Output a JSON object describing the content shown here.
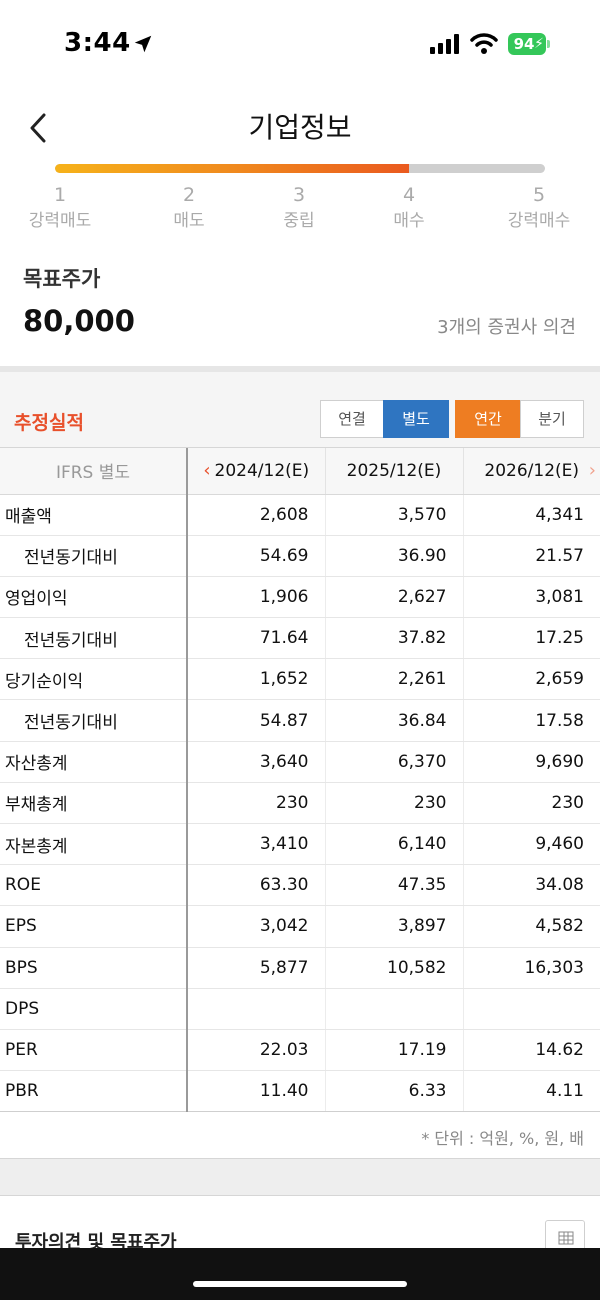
{
  "status": {
    "time": "3:44",
    "battery": "94"
  },
  "header": {
    "title": "기업정보"
  },
  "rating": {
    "level": 4,
    "steps": [
      {
        "num": "1",
        "label": "강력매도"
      },
      {
        "num": "2",
        "label": "매도"
      },
      {
        "num": "3",
        "label": "중립"
      },
      {
        "num": "4",
        "label": "매수"
      },
      {
        "num": "5",
        "label": "강력매수"
      }
    ]
  },
  "target": {
    "label": "목표주가",
    "value": "80,000",
    "opinion": "3개의 증권사 의견"
  },
  "estimate": {
    "title": "추정실적",
    "toggles": {
      "consolidated": "연결",
      "separate": "별도",
      "annual": "연간",
      "quarterly": "분기"
    },
    "columns": [
      "IFRS 별도",
      "2024/12(E)",
      "2025/12(E)",
      "2026/12(E)"
    ],
    "rows": [
      {
        "label": "매출액",
        "sub": false,
        "values": [
          "2,608",
          "3,570",
          "4,341"
        ]
      },
      {
        "label": "전년동기대비",
        "sub": true,
        "values": [
          "54.69",
          "36.90",
          "21.57"
        ]
      },
      {
        "label": "영업이익",
        "sub": false,
        "values": [
          "1,906",
          "2,627",
          "3,081"
        ]
      },
      {
        "label": "전년동기대비",
        "sub": true,
        "values": [
          "71.64",
          "37.82",
          "17.25"
        ]
      },
      {
        "label": "당기순이익",
        "sub": false,
        "values": [
          "1,652",
          "2,261",
          "2,659"
        ]
      },
      {
        "label": "전년동기대비",
        "sub": true,
        "values": [
          "54.87",
          "36.84",
          "17.58"
        ]
      },
      {
        "label": "자산총계",
        "sub": false,
        "values": [
          "3,640",
          "6,370",
          "9,690"
        ]
      },
      {
        "label": "부채총계",
        "sub": false,
        "values": [
          "230",
          "230",
          "230"
        ]
      },
      {
        "label": "자본총계",
        "sub": false,
        "values": [
          "3,410",
          "6,140",
          "9,460"
        ]
      },
      {
        "label": "ROE",
        "sub": false,
        "values": [
          "63.30",
          "47.35",
          "34.08"
        ]
      },
      {
        "label": "EPS",
        "sub": false,
        "values": [
          "3,042",
          "3,897",
          "4,582"
        ]
      },
      {
        "label": "BPS",
        "sub": false,
        "values": [
          "5,877",
          "10,582",
          "16,303"
        ]
      },
      {
        "label": "DPS",
        "sub": false,
        "values": [
          "",
          "",
          ""
        ]
      },
      {
        "label": "PER",
        "sub": false,
        "values": [
          "22.03",
          "17.19",
          "14.62"
        ]
      },
      {
        "label": "PBR",
        "sub": false,
        "values": [
          "11.40",
          "6.33",
          "4.11"
        ]
      }
    ],
    "unit_note": "* 단위 : 억원, %, 원, 배"
  },
  "invest": {
    "title": "투자의견 및 목표주가"
  },
  "icons": {
    "location": "location-arrow-icon",
    "signal": "cellular-signal-icon",
    "wifi": "wifi-icon",
    "back": "chevron-left-icon",
    "grid": "table-grid-icon"
  },
  "colors": {
    "accent": "#e8502b",
    "separate_active": "#2f75c1",
    "annual_active": "#ee7d22",
    "battery": "#34c759"
  }
}
